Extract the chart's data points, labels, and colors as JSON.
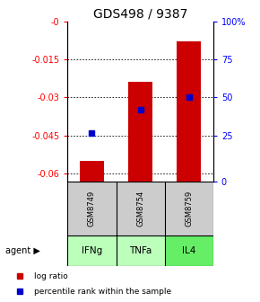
{
  "title": "GDS498 / 9387",
  "samples": [
    "GSM8749",
    "GSM8754",
    "GSM8759"
  ],
  "agents": [
    "IFNg",
    "TNFa",
    "IL4"
  ],
  "log_ratios": [
    -0.055,
    -0.024,
    -0.008
  ],
  "percentile_ranks": [
    -0.044,
    -0.035,
    -0.03
  ],
  "ylim": [
    -0.063,
    0.0
  ],
  "left_ticks": [
    0.0,
    -0.015,
    -0.03,
    -0.045,
    -0.06
  ],
  "left_tick_labels": [
    "-0",
    "-0.015",
    "-0.03",
    "-0.045",
    "-0.06"
  ],
  "right_tick_positions": [
    0.0,
    -0.015,
    -0.03,
    -0.045,
    -0.063
  ],
  "right_tick_labels": [
    "100%",
    "75",
    "50",
    "25",
    "0"
  ],
  "bar_color": "#cc0000",
  "dot_color": "#0000cc",
  "agent_colors": [
    "#bbffbb",
    "#bbffbb",
    "#66ee66"
  ],
  "sample_box_color": "#cccccc",
  "bar_bottom": -0.063,
  "title_fontsize": 10,
  "legend_bar_label": "log ratio",
  "legend_dot_label": "percentile rank within the sample"
}
